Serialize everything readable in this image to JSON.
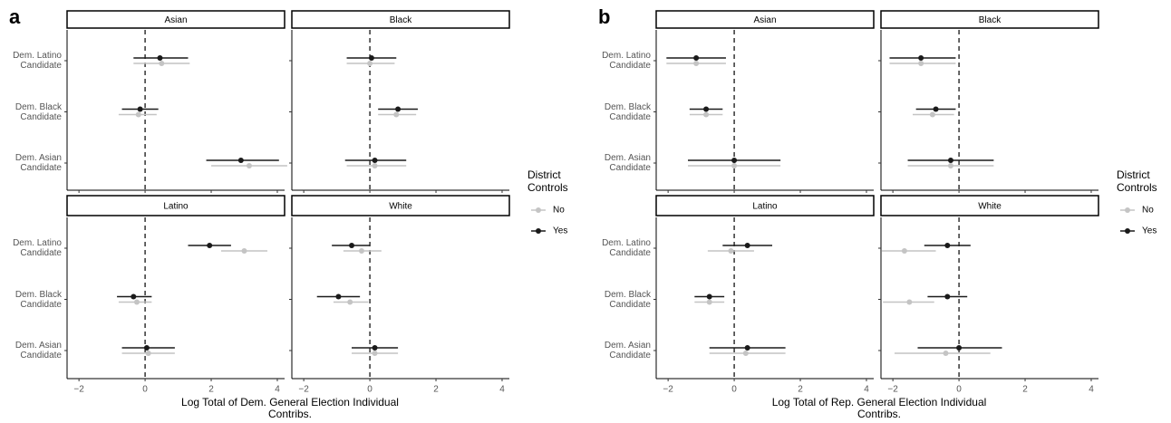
{
  "chart_data": [
    {
      "type": "pointrange",
      "label": "a",
      "x_label": "Log Total of Dem. General Election Individual Contribs.",
      "xlim": [
        -2.36,
        4.22
      ],
      "xticks": [
        {
          "value": -2,
          "label": "−2"
        },
        0,
        2,
        4
      ],
      "reference_line": 0,
      "categories": [
        "Dem. Latino Candidate",
        "Dem. Black Candidate",
        "Dem. Asian Candidate"
      ],
      "legend_title": "District Controls",
      "series": [
        {
          "name": "No",
          "color": "#c4c4c4"
        },
        {
          "name": "Yes",
          "color": "#1a1a1a"
        }
      ],
      "facets": [
        {
          "title": "Asian",
          "series": [
            {
              "values": [
                0.5,
                -0.2,
                3.15
              ],
              "lower": [
                -0.35,
                -0.8,
                2.0
              ],
              "upper": [
                1.35,
                0.35,
                4.3
              ]
            },
            {
              "values": [
                0.45,
                -0.15,
                2.9
              ],
              "lower": [
                -0.35,
                -0.7,
                1.85
              ],
              "upper": [
                1.3,
                0.4,
                4.05
              ]
            }
          ]
        },
        {
          "title": "Black",
          "series": [
            {
              "values": [
                0.0,
                0.8,
                0.15
              ],
              "lower": [
                -0.7,
                0.25,
                -0.7
              ],
              "upper": [
                0.75,
                1.4,
                1.1
              ]
            },
            {
              "values": [
                0.05,
                0.85,
                0.15
              ],
              "lower": [
                -0.7,
                0.25,
                -0.75
              ],
              "upper": [
                0.8,
                1.45,
                1.1
              ]
            }
          ]
        },
        {
          "title": "Latino",
          "series": [
            {
              "values": [
                3.0,
                -0.25,
                0.1
              ],
              "lower": [
                2.3,
                -0.8,
                -0.7
              ],
              "upper": [
                3.7,
                0.2,
                0.9
              ]
            },
            {
              "values": [
                1.95,
                -0.35,
                0.05
              ],
              "lower": [
                1.3,
                -0.85,
                -0.7
              ],
              "upper": [
                2.6,
                0.2,
                0.9
              ]
            }
          ]
        },
        {
          "title": "White",
          "series": [
            {
              "values": [
                -0.25,
                -0.6,
                0.15
              ],
              "lower": [
                -0.8,
                -1.1,
                -0.55
              ],
              "upper": [
                0.35,
                -0.05,
                0.85
              ]
            },
            {
              "values": [
                -0.55,
                -0.95,
                0.15
              ],
              "lower": [
                -1.15,
                -1.6,
                -0.55
              ],
              "upper": [
                0.0,
                -0.3,
                0.85
              ]
            }
          ]
        }
      ]
    },
    {
      "type": "pointrange",
      "label": "b",
      "x_label": "Log Total of Rep. General Election Individual Contribs.",
      "xlim": [
        -2.36,
        4.22
      ],
      "xticks": [
        {
          "value": -2,
          "label": "−2"
        },
        0,
        2,
        4
      ],
      "reference_line": 0,
      "categories": [
        "Dem. Latino Candidate",
        "Dem. Black Candidate",
        "Dem. Asian Candidate"
      ],
      "legend_title": "District Controls",
      "series": [
        {
          "name": "No",
          "color": "#c4c4c4"
        },
        {
          "name": "Yes",
          "color": "#1a1a1a"
        }
      ],
      "facets": [
        {
          "title": "Asian",
          "series": [
            {
              "values": [
                -1.15,
                -0.85,
                0.0
              ],
              "lower": [
                -2.05,
                -1.35,
                -1.4
              ],
              "upper": [
                -0.25,
                -0.35,
                1.4
              ]
            },
            {
              "values": [
                -1.15,
                -0.85,
                0.0
              ],
              "lower": [
                -2.05,
                -1.35,
                -1.4
              ],
              "upper": [
                -0.25,
                -0.35,
                1.4
              ]
            }
          ]
        },
        {
          "title": "Black",
          "series": [
            {
              "values": [
                -1.15,
                -0.8,
                -0.25
              ],
              "lower": [
                -2.1,
                -1.4,
                -1.55
              ],
              "upper": [
                -0.1,
                -0.15,
                1.05
              ]
            },
            {
              "values": [
                -1.15,
                -0.7,
                -0.25
              ],
              "lower": [
                -2.1,
                -1.3,
                -1.55
              ],
              "upper": [
                -0.1,
                -0.1,
                1.05
              ]
            }
          ]
        },
        {
          "title": "Latino",
          "series": [
            {
              "values": [
                -0.1,
                -0.75,
                0.35
              ],
              "lower": [
                -0.8,
                -1.2,
                -0.75
              ],
              "upper": [
                0.6,
                -0.3,
                1.55
              ]
            },
            {
              "values": [
                0.4,
                -0.75,
                0.4
              ],
              "lower": [
                -0.35,
                -1.2,
                -0.75
              ],
              "upper": [
                1.15,
                -0.3,
                1.55
              ]
            }
          ]
        },
        {
          "title": "White",
          "series": [
            {
              "values": [
                -1.65,
                -1.5,
                -0.4
              ],
              "lower": [
                -2.35,
                -2.3,
                -1.95
              ],
              "upper": [
                -0.7,
                -0.75,
                0.95
              ]
            },
            {
              "values": [
                -0.35,
                -0.35,
                0.0
              ],
              "lower": [
                -1.05,
                -0.95,
                -1.25
              ],
              "upper": [
                0.35,
                0.25,
                1.3
              ]
            }
          ]
        }
      ]
    }
  ]
}
